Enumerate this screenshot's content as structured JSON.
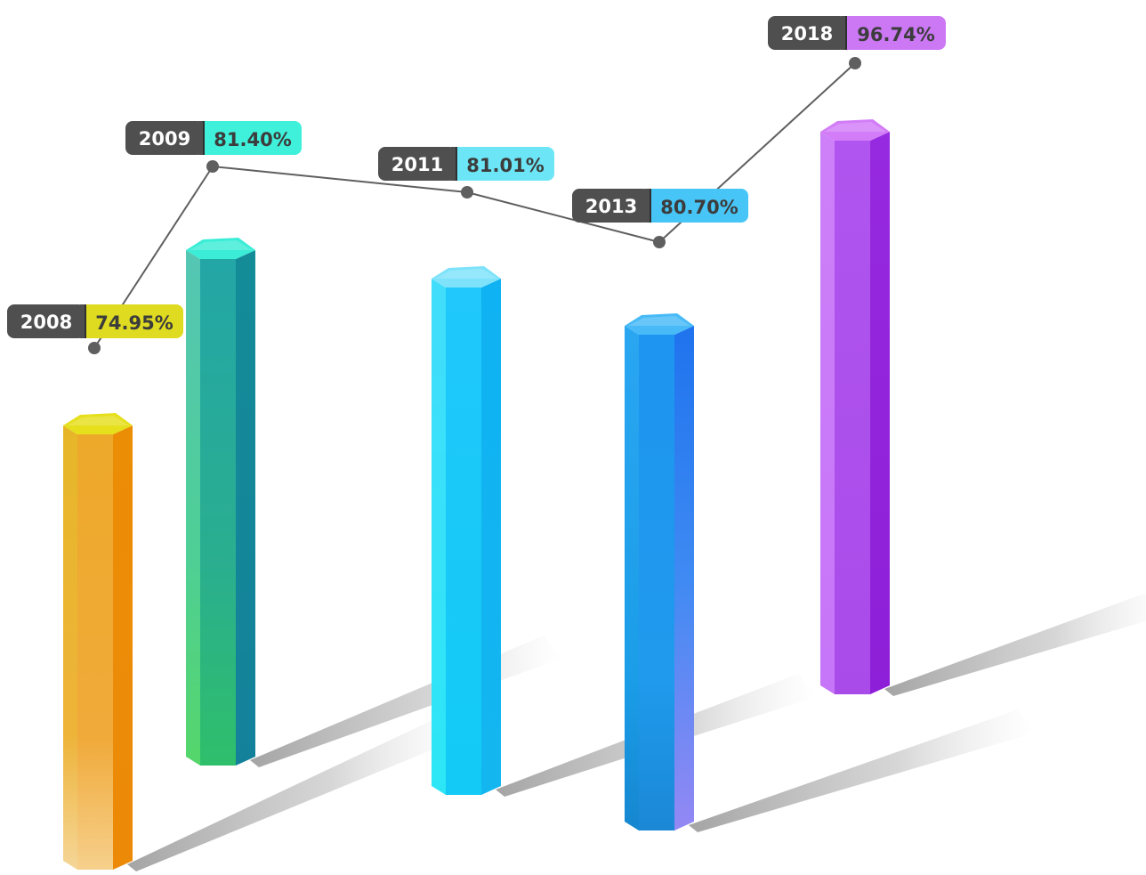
{
  "chart_data": {
    "type": "bar",
    "categories": [
      "2008",
      "2009",
      "2011",
      "2013",
      "2018"
    ],
    "values": [
      74.95,
      81.4,
      81.01,
      80.7,
      96.74
    ],
    "value_labels": [
      "74.95%",
      "81.40%",
      "81.01%",
      "80.70%",
      "96.74%"
    ],
    "title": "",
    "xlabel": "",
    "ylabel": "",
    "grid": false,
    "legend": "none",
    "style": "3d-hexagonal-columns-with-line-overlay",
    "colors": {
      "label_dark": "#4f4f4f",
      "line": "#5f5f5f",
      "bars": [
        {
          "top": "#e6df1c",
          "left": "#edb327",
          "right": "#ea8a07",
          "accent": "#dfdb20"
        },
        {
          "top": "#3bedd6",
          "left": "#2ab0a6",
          "right": "#128f98",
          "accent": "#3ff0da"
        },
        {
          "top": "#7ee3fa",
          "left": "#38d2fb",
          "right": "#13b6f0",
          "accent": "#6ce6f6"
        },
        {
          "top": "#47baf7",
          "left": "#1f9cf0",
          "right": "#3b7ff3",
          "accent": "#46c5f6"
        },
        {
          "top": "#d27cf7",
          "left": "#c67cf8",
          "right": "#9329de",
          "accent": "#cc78f5"
        }
      ]
    }
  }
}
